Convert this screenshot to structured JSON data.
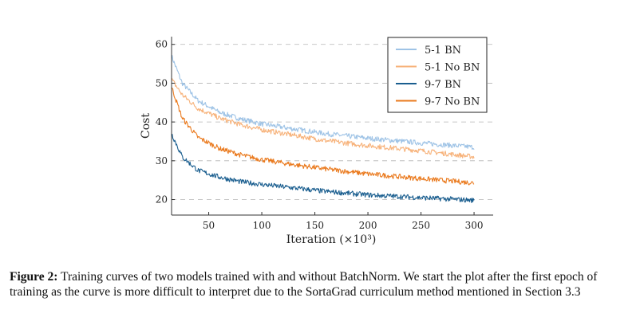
{
  "chart_data": {
    "type": "line",
    "xlabel": "Iteration (×10³)",
    "ylabel": "Cost",
    "xlim": [
      15,
      318
    ],
    "ylim": [
      16,
      62
    ],
    "xticks": [
      50,
      100,
      150,
      200,
      250,
      300
    ],
    "yticks": [
      20,
      30,
      40,
      50,
      60
    ],
    "grid": "horizontal dashed",
    "legend_position": "top-right",
    "x": [
      15,
      25,
      40,
      60,
      80,
      100,
      130,
      160,
      200,
      250,
      300
    ],
    "series": [
      {
        "name": "5-1 BN",
        "color": "#9ec3e6",
        "values": [
          57,
          50,
          45.5,
          42.5,
          40.8,
          39.5,
          38.2,
          37,
          35.8,
          34.6,
          33.5
        ]
      },
      {
        "name": "5-1 No BN",
        "color": "#f7b27a",
        "values": [
          51,
          47,
          43.5,
          41,
          39.3,
          38,
          36.6,
          35.2,
          33.9,
          32.6,
          31
        ]
      },
      {
        "name": "9-7 BN",
        "color": "#1a5e8f",
        "values": [
          37,
          31,
          27.5,
          25.8,
          24.6,
          23.9,
          23,
          22.1,
          21.2,
          20.5,
          19.8
        ]
      },
      {
        "name": "9-7 No BN",
        "color": "#ea7a1e",
        "values": [
          49,
          41,
          36,
          33.2,
          31.5,
          30.3,
          29,
          27.9,
          26.6,
          25.4,
          24.3
        ]
      }
    ]
  },
  "caption": {
    "label": "Figure 2:",
    "text": "Training curves of two models trained with and without BatchNorm. We start the plot after the first epoch of training as the curve is more difficult to interpret due to the SortaGrad curriculum method mentioned in Section 3.3"
  }
}
